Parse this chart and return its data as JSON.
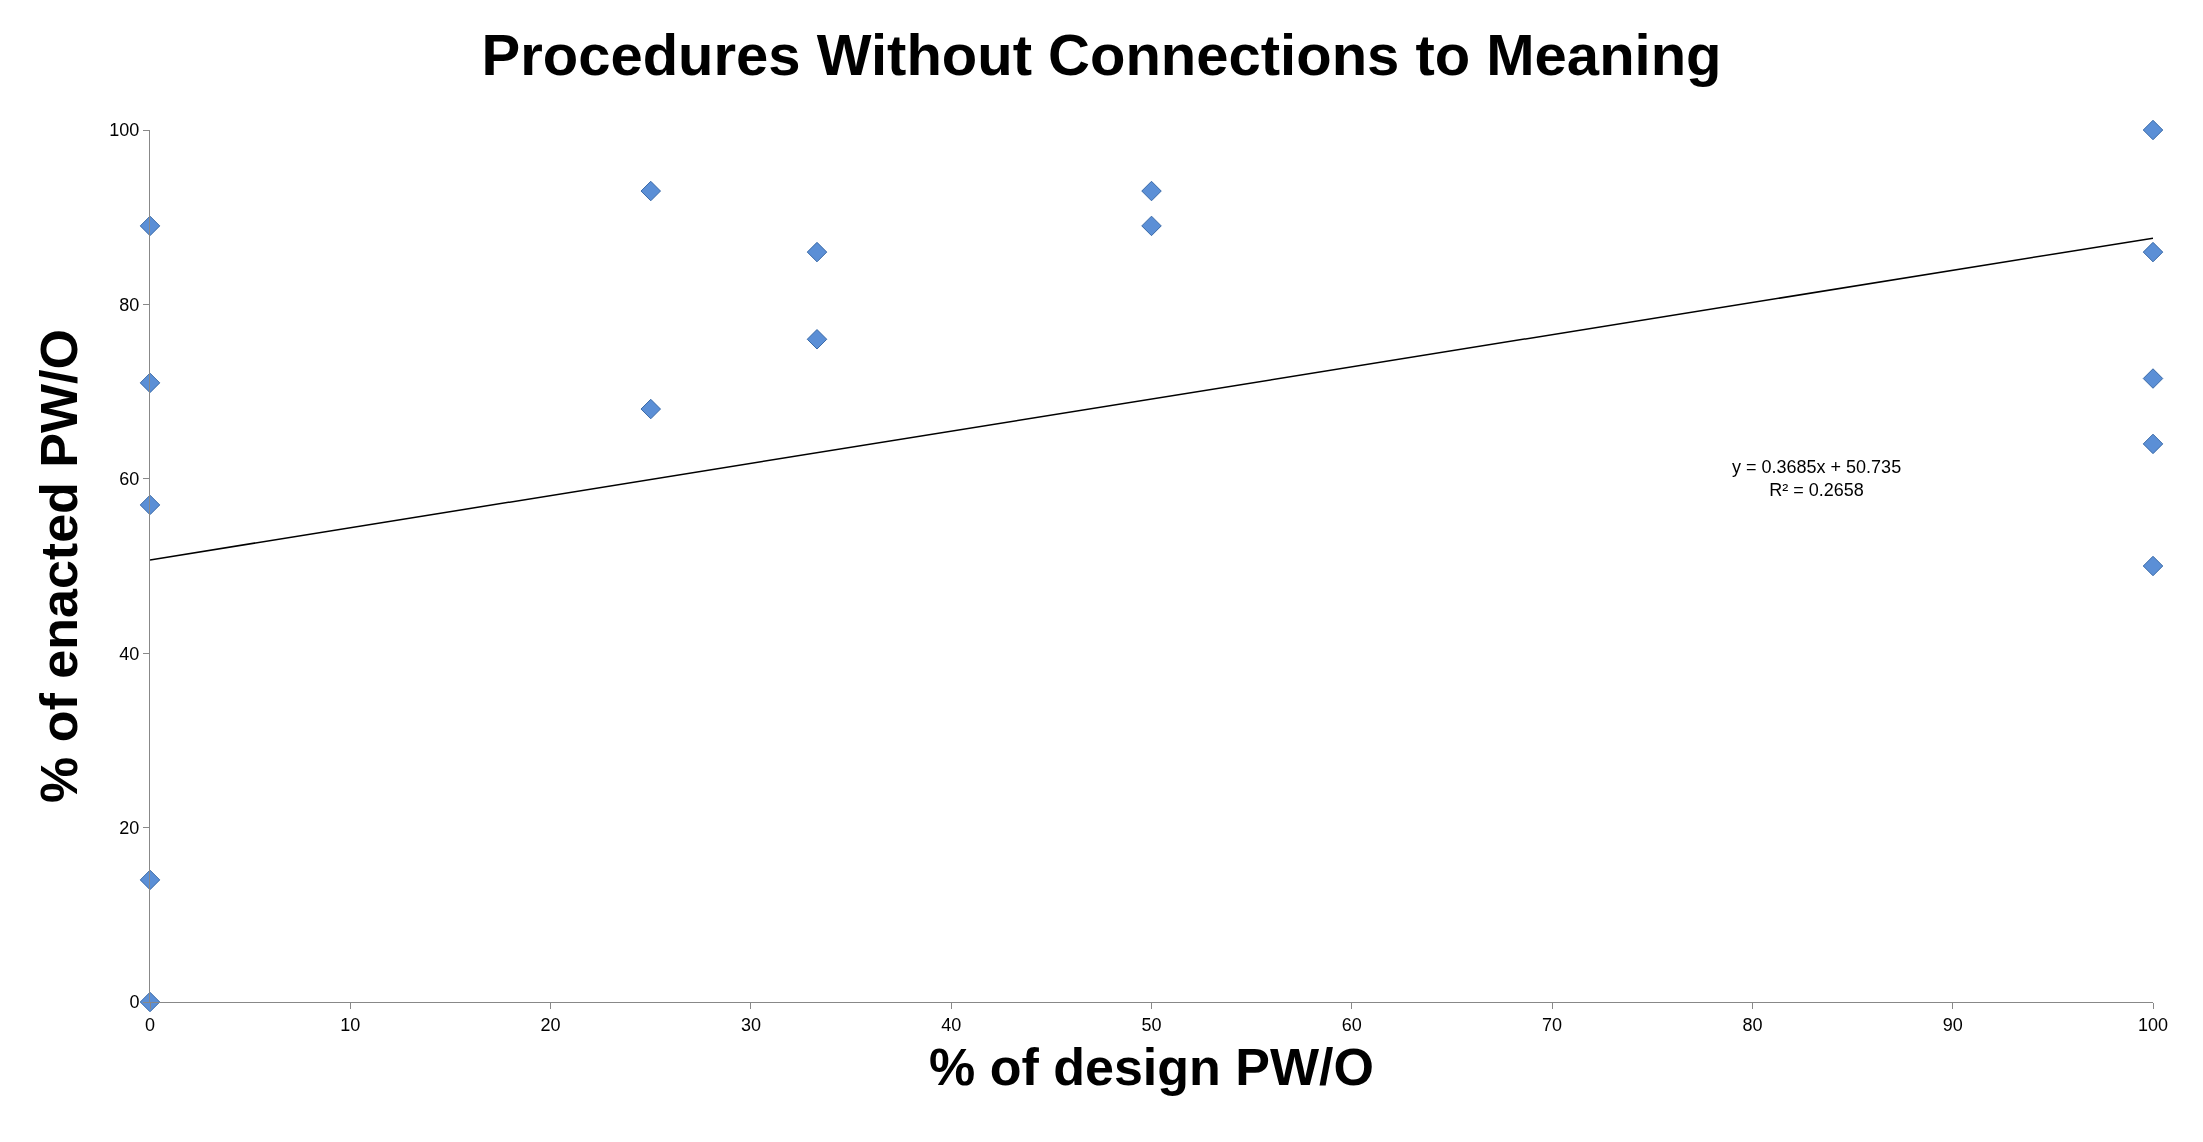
{
  "chart_data": {
    "type": "scatter",
    "title": "Procedures Without Connections to Meaning",
    "xlabel": "% of design PW/O",
    "ylabel": "% of enacted PW/O",
    "series": [
      {
        "marker": "diamond",
        "color": "#5b8fd6",
        "x": [
          0,
          0,
          0,
          0,
          0,
          25,
          25,
          33.3,
          33.3,
          50,
          50,
          100,
          100,
          100,
          100,
          100
        ],
        "values": [
          89,
          71,
          57,
          14,
          0,
          93,
          68,
          86,
          76,
          93,
          89,
          100,
          86,
          71.5,
          64,
          50
        ]
      },
      {
        "type": "line",
        "line_style": "solid",
        "color": "#000000",
        "x": [
          0,
          100
        ],
        "values": [
          50.7,
          87.6
        ]
      }
    ],
    "xlim": [
      0,
      100
    ],
    "ylim": [
      0,
      100
    ],
    "xticks": [
      0,
      10,
      20,
      30,
      40,
      50,
      60,
      70,
      80,
      90,
      100
    ],
    "yticks": [
      0,
      20,
      40,
      60,
      80,
      100
    ],
    "annotations": [
      "y = 0.3685x + 50.735\nR² = 0.2658"
    ],
    "grid": false,
    "legend": false
  }
}
